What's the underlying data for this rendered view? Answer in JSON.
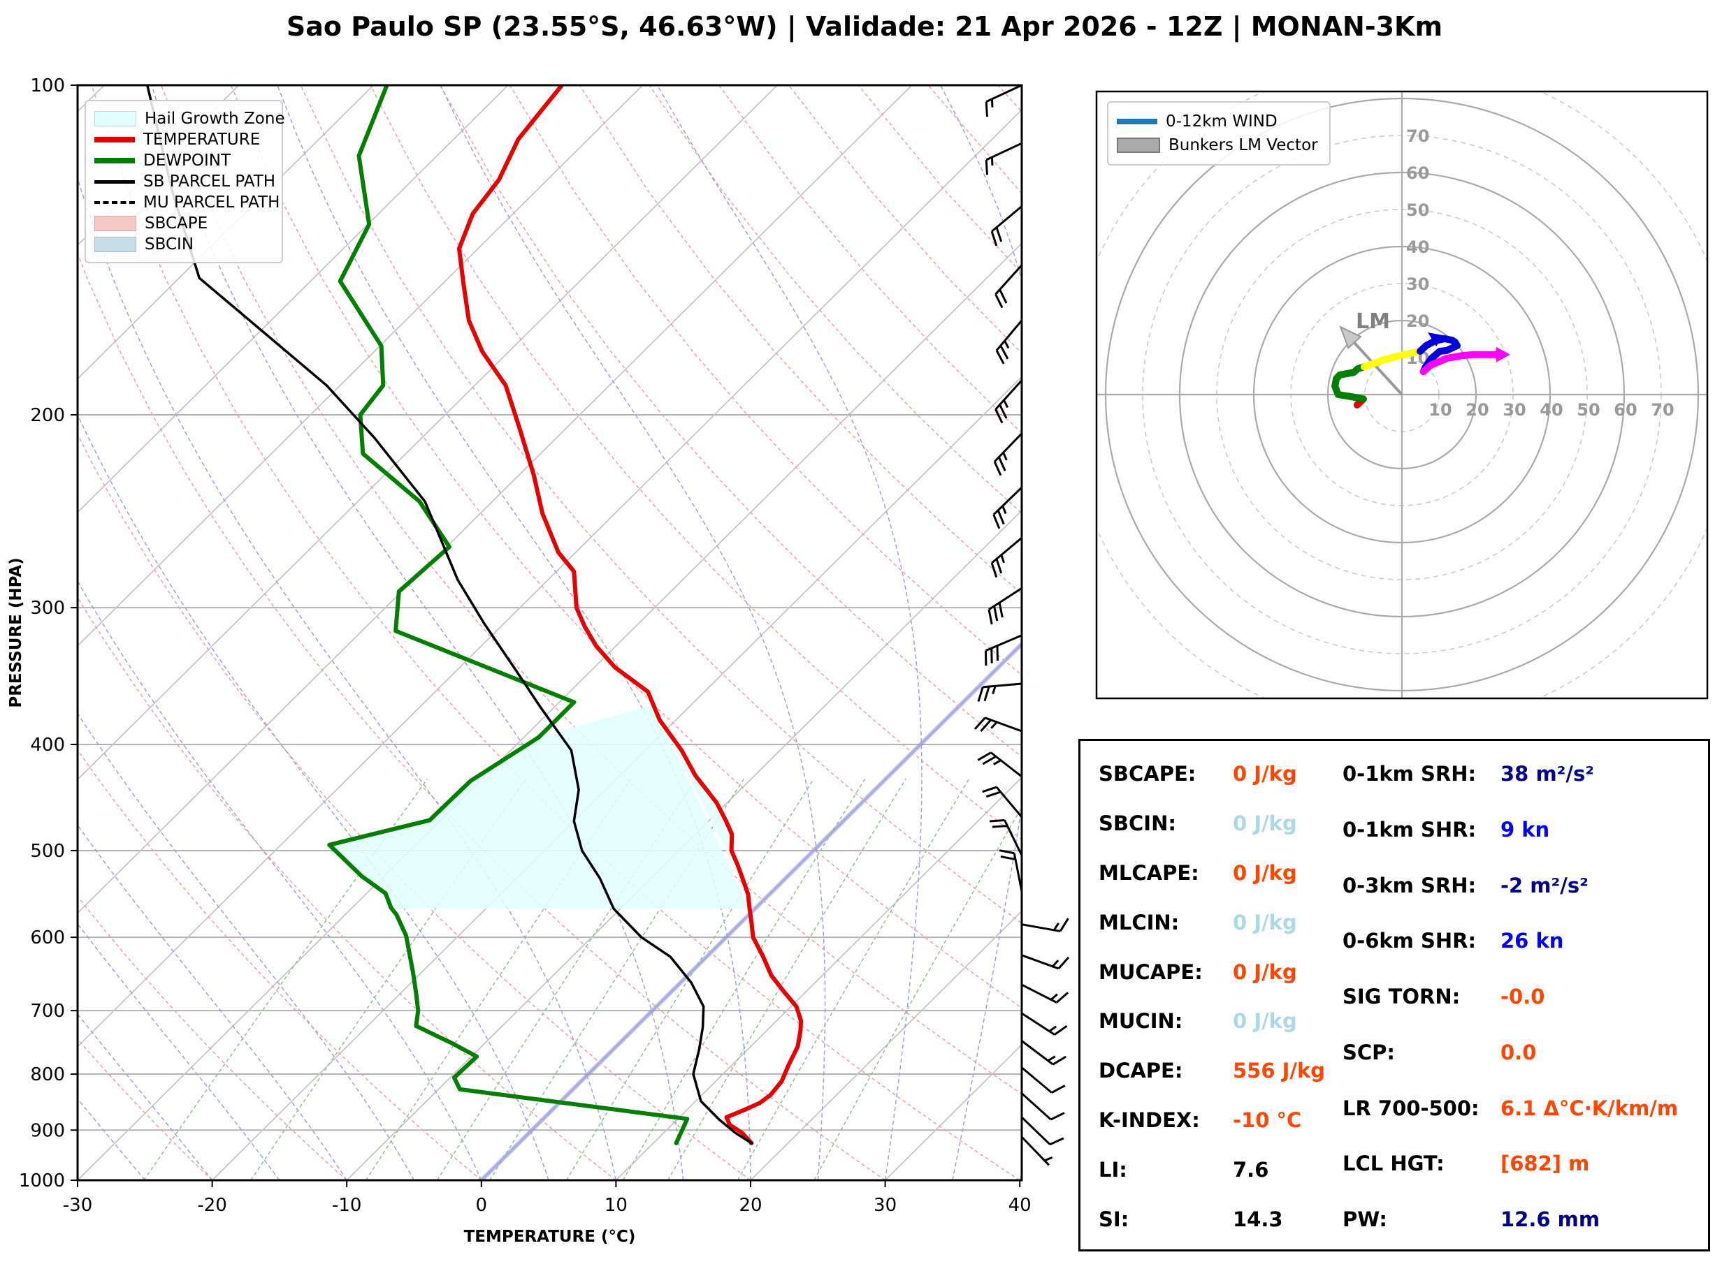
{
  "title": "Sao Paulo SP (23.55°S, 46.63°W) | Validade: 21 Apr 2026 - 12Z | MONAN-3Km",
  "palette": {
    "orange": "#FF4500",
    "lightblue": "#ADD8E6",
    "navy": "#00008B",
    "blue": "#0000FF",
    "black": "#000000",
    "temperature_red": "#E80000",
    "dewpoint_green": "#007F00",
    "parcel_black": "#000000",
    "hail_cyan": "#E0FFFF",
    "sbcape_patch": "#F5C9C9",
    "sbcin_patch": "#C9DCEA",
    "wind_legend_blue": "#1F77B4",
    "bunkers_gray": "#AAAAAA",
    "freezing_violet": "#8888EE"
  },
  "chart_data": [
    {
      "type": "line",
      "id": "skewt",
      "xlabel": "TEMPERATURE (°C)",
      "ylabel": "PRESSURE (HPA)",
      "x_ticks": [
        -30,
        -20,
        -10,
        0,
        10,
        20,
        30,
        40
      ],
      "pressure_ticks": [
        100,
        200,
        300,
        400,
        500,
        600,
        700,
        800,
        900,
        1000
      ],
      "xlim": [
        -30,
        40
      ],
      "plim": [
        100,
        1000
      ],
      "skew_deg_c_per_decade": 82,
      "legend": [
        {
          "label": "Hail Growth Zone",
          "color": "#E0FFFF",
          "style": "patch"
        },
        {
          "label": "TEMPERATURE",
          "color": "#E80000",
          "style": "line"
        },
        {
          "label": "DEWPOINT",
          "color": "#007F00",
          "style": "line"
        },
        {
          "label": "SB PARCEL PATH",
          "color": "#000000",
          "style": "line-thin"
        },
        {
          "label": "MU PARCEL PATH",
          "color": "#000000",
          "style": "dashed"
        },
        {
          "label": "SBCAPE",
          "color": "#F5C9C9",
          "style": "patch"
        },
        {
          "label": "SBCIN",
          "color": "#C9DCEA",
          "style": "patch"
        }
      ],
      "series": [
        {
          "name": "TEMPERATURE",
          "color": "#E80000",
          "width": 6,
          "points": [
            [
              100,
              -76
            ],
            [
              112,
              -75.2
            ],
            [
              122,
              -73.6
            ],
            [
              131,
              -73
            ],
            [
              141,
              -71.4
            ],
            [
              152,
              -68.4
            ],
            [
              164,
              -65.3
            ],
            [
              175,
              -62
            ],
            [
              188,
              -57.7
            ],
            [
              206,
              -53.4
            ],
            [
              227,
              -48.9
            ],
            [
              246,
              -45.4
            ],
            [
              267,
              -41.3
            ],
            [
              278,
              -38.7
            ],
            [
              300,
              -35.8
            ],
            [
              312,
              -33.8
            ],
            [
              325,
              -31.5
            ],
            [
              340,
              -28.5
            ],
            [
              358,
              -24.2
            ],
            [
              380,
              -21.2
            ],
            [
              405,
              -17.3
            ],
            [
              427,
              -14.4
            ],
            [
              452,
              -10.8
            ],
            [
              470,
              -8.7
            ],
            [
              483,
              -7.3
            ],
            [
              500,
              -6.1
            ],
            [
              515,
              -4.6
            ],
            [
              530,
              -3.2
            ],
            [
              548,
              -1.6
            ],
            [
              565,
              -0.4
            ],
            [
              582,
              0.8
            ],
            [
              600,
              2
            ],
            [
              625,
              4.2
            ],
            [
              650,
              6.2
            ],
            [
              672,
              8.3
            ],
            [
              694,
              10.4
            ],
            [
              715,
              11.8
            ],
            [
              730,
              12.5
            ],
            [
              755,
              13.5
            ],
            [
              785,
              14.2
            ],
            [
              812,
              14.9
            ],
            [
              836,
              15.1
            ],
            [
              850,
              14.9
            ],
            [
              862,
              14.3
            ],
            [
              876,
              13.5
            ],
            [
              890,
              14.3
            ],
            [
              905,
              15.8
            ],
            [
              925,
              17.3
            ]
          ]
        },
        {
          "name": "DEWPOINT",
          "color": "#007F00",
          "width": 6,
          "points": [
            [
              100,
              -89
            ],
            [
              116,
              -85.8
            ],
            [
              134,
              -79.9
            ],
            [
              151,
              -77.8
            ],
            [
              173,
              -69.9
            ],
            [
              188,
              -66.8
            ],
            [
              200,
              -66.3
            ],
            [
              217,
              -63.2
            ],
            [
              240,
              -55.4
            ],
            [
              264,
              -49.8
            ],
            [
              290,
              -50.2
            ],
            [
              315,
              -47.5
            ],
            [
              339,
              -38.4
            ],
            [
              366,
              -28.9
            ],
            [
              394,
              -28.9
            ],
            [
              432,
              -30.7
            ],
            [
              469,
              -30.8
            ],
            [
              494,
              -36.4
            ],
            [
              528,
              -31.6
            ],
            [
              547,
              -28.6
            ],
            [
              564,
              -27.1
            ],
            [
              572,
              -26.2
            ],
            [
              598,
              -23.9
            ],
            [
              645,
              -20.7
            ],
            [
              674,
              -18.9
            ],
            [
              700,
              -17.4
            ],
            [
              723,
              -16.4
            ],
            [
              750,
              -12.4
            ],
            [
              771,
              -9.6
            ],
            [
              806,
              -9.7
            ],
            [
              826,
              -8.4
            ],
            [
              879,
              10.7
            ],
            [
              888,
              10.9
            ],
            [
              925,
              11.7
            ]
          ]
        },
        {
          "name": "SB PARCEL PATH",
          "color": "#000000",
          "width": 3.5,
          "points": [
            [
              100,
              -106.8
            ],
            [
              125,
              -97
            ],
            [
              150,
              -88.5
            ],
            [
              188,
              -71
            ],
            [
              210,
              -63.5
            ],
            [
              240,
              -55
            ],
            [
              283,
              -46.7
            ],
            [
              310,
              -41.5
            ],
            [
              340,
              -36
            ],
            [
              370,
              -31
            ],
            [
              405,
              -25.5
            ],
            [
              440,
              -22
            ],
            [
              470,
              -20
            ],
            [
              500,
              -17.2
            ],
            [
              530,
              -13.8
            ],
            [
              565,
              -10.5
            ],
            [
              600,
              -6.3
            ],
            [
              625,
              -2.7
            ],
            [
              660,
              0.8
            ],
            [
              694,
              3.5
            ],
            [
              725,
              5
            ],
            [
              760,
              6.4
            ],
            [
              800,
              7.8
            ],
            [
              847,
              10.4
            ],
            [
              880,
              13.1
            ],
            [
              905,
              15.3
            ],
            [
              925,
              17.3
            ]
          ]
        },
        {
          "name": "MU PARCEL PATH",
          "color": "#000000",
          "width": 2.5,
          "dashed": true,
          "points": [
            [
              100,
              -106.8
            ],
            [
              125,
              -97
            ],
            [
              150,
              -88.5
            ],
            [
              188,
              -71
            ],
            [
              210,
              -63.5
            ],
            [
              240,
              -55
            ],
            [
              283,
              -46.7
            ],
            [
              310,
              -41.5
            ],
            [
              340,
              -36
            ],
            [
              370,
              -31
            ],
            [
              405,
              -25.5
            ],
            [
              440,
              -22
            ],
            [
              470,
              -20
            ],
            [
              500,
              -17.2
            ],
            [
              530,
              -13.8
            ],
            [
              565,
              -10.5
            ],
            [
              600,
              -6.3
            ],
            [
              625,
              -2.7
            ],
            [
              660,
              0.8
            ],
            [
              694,
              3.5
            ],
            [
              725,
              5
            ],
            [
              760,
              6.4
            ],
            [
              800,
              7.8
            ],
            [
              847,
              10.4
            ],
            [
              880,
              13.1
            ],
            [
              905,
              15.3
            ],
            [
              925,
              17.3
            ]
          ]
        }
      ],
      "hail_growth_zone": {
        "p_top": 368,
        "p_top_left": 394,
        "p_bottom": 565
      },
      "freezing_isotherm_c": 0,
      "wind_barbs": [
        {
          "p": 100,
          "dir": 245,
          "spd": 15
        },
        {
          "p": 113,
          "dir": 245,
          "spd": 15
        },
        {
          "p": 129,
          "dir": 230,
          "spd": 20
        },
        {
          "p": 146,
          "dir": 222,
          "spd": 20
        },
        {
          "p": 164,
          "dir": 220,
          "spd": 25
        },
        {
          "p": 186,
          "dir": 222,
          "spd": 25
        },
        {
          "p": 208,
          "dir": 224,
          "spd": 25
        },
        {
          "p": 233,
          "dir": 226,
          "spd": 25
        },
        {
          "p": 259,
          "dir": 230,
          "spd": 25
        },
        {
          "p": 288,
          "dir": 237,
          "spd": 30
        },
        {
          "p": 318,
          "dir": 247,
          "spd": 30
        },
        {
          "p": 352,
          "dir": 265,
          "spd": 25
        },
        {
          "p": 389,
          "dir": 290,
          "spd": 25
        },
        {
          "p": 428,
          "dir": 308,
          "spd": 25
        },
        {
          "p": 466,
          "dir": 320,
          "spd": 20
        },
        {
          "p": 505,
          "dir": 334,
          "spd": 20
        },
        {
          "p": 545,
          "dir": 349,
          "spd": 20
        },
        {
          "p": 584,
          "dir": 100,
          "spd": 15
        },
        {
          "p": 623,
          "dir": 110,
          "spd": 15
        },
        {
          "p": 663,
          "dir": 117,
          "spd": 15
        },
        {
          "p": 704,
          "dir": 123,
          "spd": 15
        },
        {
          "p": 746,
          "dir": 127,
          "spd": 15
        },
        {
          "p": 789,
          "dir": 130,
          "spd": 10
        },
        {
          "p": 833,
          "dir": 132,
          "spd": 10
        },
        {
          "p": 876,
          "dir": 134,
          "spd": 10
        },
        {
          "p": 913,
          "dir": 136,
          "spd": 5
        }
      ],
      "background": {
        "isotherms_c": {
          "min": -120,
          "max": 40,
          "step": 10
        },
        "dry_adiabats_theta_c": {
          "min": -30,
          "max": 180,
          "step": 10
        },
        "moist_adiabats_t0_c": {
          "min": -55,
          "max": 40,
          "step": 5
        },
        "mixing_ratio_g_kg": [
          0.5,
          1,
          2,
          3,
          4,
          6,
          8,
          10,
          14,
          20
        ]
      }
    },
    {
      "type": "line",
      "id": "hodograph",
      "ring_unit": "kn",
      "ring_step": 10,
      "ring_max": 70,
      "ring_labels": [
        10,
        20,
        30,
        40,
        50,
        60,
        70
      ],
      "legend": [
        {
          "label": "0-12km WIND",
          "color": "#1F77B4",
          "style": "line"
        },
        {
          "label": "Bunkers LM Vector",
          "color": "#AAAAAA",
          "style": "patch-outline"
        }
      ],
      "segments": [
        {
          "color": "#E60000",
          "points": [
            [
              -12.1,
              -2.8
            ],
            [
              -10.4,
              -1.2
            ]
          ]
        },
        {
          "color": "#007F00",
          "points": [
            [
              -10.4,
              -1.2
            ],
            [
              -13.5,
              -0.6
            ],
            [
              -17.2,
              0
            ],
            [
              -18.1,
              2.3
            ],
            [
              -17.7,
              4.3
            ],
            [
              -16.8,
              5.3
            ],
            [
              -13,
              6
            ],
            [
              -11.9,
              7
            ],
            [
              -10.2,
              7.5
            ]
          ]
        },
        {
          "color": "#FFFF00",
          "points": [
            [
              -10.2,
              7.5
            ],
            [
              -7,
              8.6
            ],
            [
              -4.9,
              9.4
            ],
            [
              -1.1,
              10.4
            ],
            [
              3,
              11.3
            ],
            [
              4.9,
              11.7
            ]
          ]
        },
        {
          "color": "#0000DD",
          "points": [
            [
              4.9,
              11.7
            ],
            [
              6.5,
              13.2
            ],
            [
              8.9,
              14.5
            ],
            [
              11.5,
              15.1
            ],
            [
              13.5,
              14.7
            ],
            [
              14.3,
              14.2
            ],
            [
              14.9,
              13.2
            ],
            [
              12.1,
              11.9
            ],
            [
              10.2,
              11.7
            ],
            [
              8,
              9.8
            ],
            [
              6.4,
              7.5
            ],
            [
              5.8,
              6.2
            ]
          ]
        },
        {
          "color": "#FF00FF",
          "points": [
            [
              5.8,
              6.2
            ],
            [
              7.7,
              7.9
            ],
            [
              12.1,
              9.8
            ],
            [
              16,
              10.5
            ],
            [
              19.1,
              10.8
            ],
            [
              24.9,
              10.8
            ],
            [
              26.2,
              10.8
            ]
          ]
        }
      ],
      "bunkers_lm_vector": {
        "u": -16.6,
        "v": 18.3,
        "label": "LM"
      }
    }
  ],
  "stats": {
    "left": [
      {
        "label": "SBCAPE:",
        "value": "0 J/kg",
        "color": "orange"
      },
      {
        "label": "SBCIN:",
        "value": "0 J/kg",
        "color": "lightblue"
      },
      {
        "label": "MLCAPE:",
        "value": "0 J/kg",
        "color": "orange"
      },
      {
        "label": "MLCIN:",
        "value": "0 J/kg",
        "color": "lightblue"
      },
      {
        "label": "MUCAPE:",
        "value": "0 J/kg",
        "color": "orange"
      },
      {
        "label": "MUCIN:",
        "value": "0 J/kg",
        "color": "lightblue"
      },
      {
        "label": "DCAPE:",
        "value": "556 J/kg",
        "color": "orange"
      },
      {
        "label": "K-INDEX:",
        "value": "-10 °C",
        "color": "orange"
      },
      {
        "label": "LI:",
        "value": "7.6",
        "color": "black"
      },
      {
        "label": "SI:",
        "value": "14.3",
        "color": "black"
      }
    ],
    "right": [
      {
        "label": "0-1km SRH:",
        "value": "38 m²/s²",
        "color": "navy"
      },
      {
        "label": "0-1km SHR:",
        "value": "9 kn",
        "color": "blue"
      },
      {
        "label": "0-3km SRH:",
        "value": "-2 m²/s²",
        "color": "navy"
      },
      {
        "label": "0-6km SHR:",
        "value": "26 kn",
        "color": "blue"
      },
      {
        "label": "SIG TORN:",
        "value": "-0.0",
        "color": "orange"
      },
      {
        "label": "SCP:",
        "value": "0.0",
        "color": "orange"
      },
      {
        "label": "LR 700-500:",
        "value": "6.1 Δ°C·K/km/m",
        "color": "orange"
      },
      {
        "label": "LCL HGT:",
        "value": "[682] m",
        "color": "orange"
      },
      {
        "label": "PW:",
        "value": "12.6 mm",
        "color": "navy"
      }
    ]
  }
}
